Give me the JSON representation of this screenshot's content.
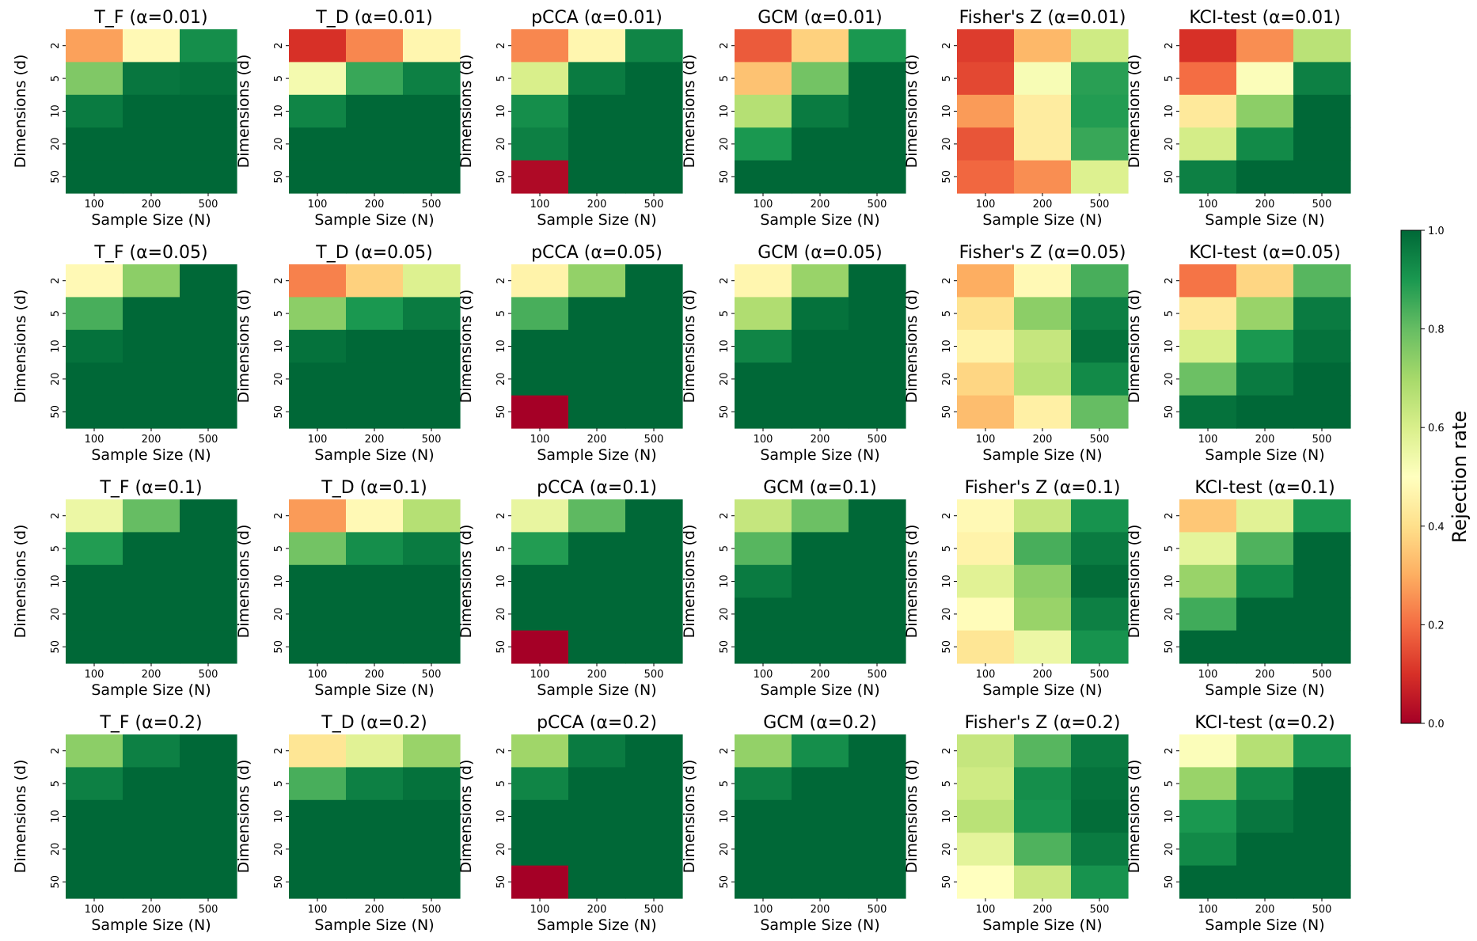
{
  "chart_data": {
    "type": "heatmap",
    "x_categories": [
      "100",
      "200",
      "500"
    ],
    "y_categories": [
      "2",
      "5",
      "10",
      "20",
      "50"
    ],
    "xlabel": "Sample Size (N)",
    "ylabel": "Dimensions (d)",
    "colorbar": {
      "label": "Rejection rate",
      "range": [
        0.0,
        1.0
      ],
      "ticks": [
        "0.0",
        "0.2",
        "0.4",
        "0.6",
        "0.8",
        "1.0"
      ],
      "colormap": "RdYlGn"
    },
    "panels": [
      {
        "title": "T_F (α=0.01)",
        "values": [
          [
            0.28,
            0.48,
            0.92
          ],
          [
            0.76,
            0.97,
            0.98
          ],
          [
            0.96,
            1.0,
            1.0
          ],
          [
            1.0,
            1.0,
            1.0
          ],
          [
            1.0,
            1.0,
            1.0
          ]
        ]
      },
      {
        "title": "T_D (α=0.01)",
        "values": [
          [
            0.1,
            0.24,
            0.47
          ],
          [
            0.53,
            0.86,
            0.95
          ],
          [
            0.94,
            1.0,
            1.0
          ],
          [
            1.0,
            1.0,
            1.0
          ],
          [
            1.0,
            1.0,
            1.0
          ]
        ]
      },
      {
        "title": "pCCA (α=0.01)",
        "values": [
          [
            0.24,
            0.47,
            0.94
          ],
          [
            0.6,
            0.96,
            1.0
          ],
          [
            0.92,
            1.0,
            1.0
          ],
          [
            0.95,
            1.0,
            1.0
          ],
          [
            0.02,
            1.0,
            1.0
          ]
        ]
      },
      {
        "title": "GCM (α=0.01)",
        "values": [
          [
            0.17,
            0.37,
            0.9
          ],
          [
            0.34,
            0.78,
            1.0
          ],
          [
            0.67,
            0.96,
            1.0
          ],
          [
            0.9,
            1.0,
            1.0
          ],
          [
            1.0,
            1.0,
            1.0
          ]
        ]
      },
      {
        "title": "Fisher's Z (α=0.01)",
        "values": [
          [
            0.12,
            0.32,
            0.62
          ],
          [
            0.14,
            0.52,
            0.88
          ],
          [
            0.27,
            0.44,
            0.89
          ],
          [
            0.16,
            0.44,
            0.86
          ],
          [
            0.19,
            0.25,
            0.59
          ]
        ]
      },
      {
        "title": "KCI-test (α=0.01)",
        "values": [
          [
            0.1,
            0.25,
            0.66
          ],
          [
            0.2,
            0.51,
            0.95
          ],
          [
            0.43,
            0.74,
            1.0
          ],
          [
            0.61,
            0.93,
            1.0
          ],
          [
            0.95,
            1.0,
            1.0
          ]
        ]
      },
      {
        "title": "T_F (α=0.05)",
        "values": [
          [
            0.48,
            0.74,
            1.0
          ],
          [
            0.84,
            1.0,
            1.0
          ],
          [
            0.98,
            1.0,
            1.0
          ],
          [
            1.0,
            1.0,
            1.0
          ],
          [
            1.0,
            1.0,
            1.0
          ]
        ]
      },
      {
        "title": "T_D (α=0.05)",
        "values": [
          [
            0.23,
            0.37,
            0.59
          ],
          [
            0.74,
            0.9,
            0.96
          ],
          [
            0.98,
            1.0,
            1.0
          ],
          [
            1.0,
            1.0,
            1.0
          ],
          [
            1.0,
            1.0,
            1.0
          ]
        ]
      },
      {
        "title": "pCCA (α=0.05)",
        "values": [
          [
            0.46,
            0.73,
            1.0
          ],
          [
            0.84,
            1.0,
            1.0
          ],
          [
            1.0,
            1.0,
            1.0
          ],
          [
            1.0,
            1.0,
            1.0
          ],
          [
            0.0,
            1.0,
            1.0
          ]
        ]
      },
      {
        "title": "GCM (α=0.05)",
        "values": [
          [
            0.47,
            0.72,
            1.0
          ],
          [
            0.68,
            0.98,
            1.0
          ],
          [
            0.94,
            1.0,
            1.0
          ],
          [
            1.0,
            1.0,
            1.0
          ],
          [
            1.0,
            1.0,
            1.0
          ]
        ]
      },
      {
        "title": "Fisher's Z (α=0.05)",
        "values": [
          [
            0.3,
            0.48,
            0.84
          ],
          [
            0.41,
            0.74,
            0.95
          ],
          [
            0.46,
            0.64,
            0.98
          ],
          [
            0.38,
            0.66,
            0.93
          ],
          [
            0.33,
            0.45,
            0.8
          ]
        ]
      },
      {
        "title": "KCI-test (α=0.05)",
        "values": [
          [
            0.21,
            0.38,
            0.82
          ],
          [
            0.43,
            0.72,
            0.96
          ],
          [
            0.6,
            0.9,
            0.98
          ],
          [
            0.79,
            0.96,
            1.0
          ],
          [
            0.98,
            1.0,
            1.0
          ]
        ]
      },
      {
        "title": "T_F (α=0.1)",
        "values": [
          [
            0.55,
            0.8,
            1.0
          ],
          [
            0.89,
            1.0,
            1.0
          ],
          [
            1.0,
            1.0,
            1.0
          ],
          [
            1.0,
            1.0,
            1.0
          ],
          [
            1.0,
            1.0,
            1.0
          ]
        ]
      },
      {
        "title": "T_D (α=0.1)",
        "values": [
          [
            0.27,
            0.48,
            0.67
          ],
          [
            0.78,
            0.92,
            0.96
          ],
          [
            1.0,
            1.0,
            1.0
          ],
          [
            1.0,
            1.0,
            1.0
          ],
          [
            1.0,
            1.0,
            1.0
          ]
        ]
      },
      {
        "title": "pCCA (α=0.1)",
        "values": [
          [
            0.56,
            0.81,
            1.0
          ],
          [
            0.89,
            1.0,
            1.0
          ],
          [
            1.0,
            1.0,
            1.0
          ],
          [
            1.0,
            1.0,
            1.0
          ],
          [
            0.0,
            1.0,
            1.0
          ]
        ]
      },
      {
        "title": "GCM (α=0.1)",
        "values": [
          [
            0.64,
            0.79,
            1.0
          ],
          [
            0.82,
            1.0,
            1.0
          ],
          [
            0.96,
            1.0,
            1.0
          ],
          [
            1.0,
            1.0,
            1.0
          ],
          [
            1.0,
            1.0,
            1.0
          ]
        ]
      },
      {
        "title": "Fisher's Z (α=0.1)",
        "values": [
          [
            0.48,
            0.64,
            0.91
          ],
          [
            0.46,
            0.84,
            0.96
          ],
          [
            0.58,
            0.74,
            0.99
          ],
          [
            0.49,
            0.72,
            0.95
          ],
          [
            0.42,
            0.55,
            0.91
          ]
        ]
      },
      {
        "title": "KCI-test (α=0.1)",
        "values": [
          [
            0.35,
            0.58,
            0.9
          ],
          [
            0.57,
            0.83,
            1.0
          ],
          [
            0.72,
            0.93,
            1.0
          ],
          [
            0.85,
            1.0,
            1.0
          ],
          [
            1.0,
            1.0,
            1.0
          ]
        ]
      },
      {
        "title": "T_F (α=0.2)",
        "values": [
          [
            0.74,
            0.95,
            1.0
          ],
          [
            0.95,
            1.0,
            1.0
          ],
          [
            1.0,
            1.0,
            1.0
          ],
          [
            1.0,
            1.0,
            1.0
          ],
          [
            1.0,
            1.0,
            1.0
          ]
        ]
      },
      {
        "title": "T_D (α=0.2)",
        "values": [
          [
            0.42,
            0.58,
            0.72
          ],
          [
            0.84,
            0.95,
            0.98
          ],
          [
            1.0,
            1.0,
            1.0
          ],
          [
            1.0,
            1.0,
            1.0
          ],
          [
            1.0,
            1.0,
            1.0
          ]
        ]
      },
      {
        "title": "pCCA (α=0.2)",
        "values": [
          [
            0.71,
            0.96,
            1.0
          ],
          [
            0.94,
            1.0,
            1.0
          ],
          [
            1.0,
            1.0,
            1.0
          ],
          [
            1.0,
            1.0,
            1.0
          ],
          [
            0.0,
            1.0,
            1.0
          ]
        ]
      },
      {
        "title": "GCM (α=0.2)",
        "values": [
          [
            0.73,
            0.92,
            1.0
          ],
          [
            0.95,
            1.0,
            1.0
          ],
          [
            1.0,
            1.0,
            1.0
          ],
          [
            1.0,
            1.0,
            1.0
          ],
          [
            1.0,
            1.0,
            1.0
          ]
        ]
      },
      {
        "title": "Fisher's Z (α=0.2)",
        "values": [
          [
            0.64,
            0.82,
            0.96
          ],
          [
            0.62,
            0.92,
            0.98
          ],
          [
            0.66,
            0.91,
            0.99
          ],
          [
            0.57,
            0.83,
            0.96
          ],
          [
            0.5,
            0.63,
            0.91
          ]
        ]
      },
      {
        "title": "KCI-test (α=0.2)",
        "values": [
          [
            0.51,
            0.67,
            0.91
          ],
          [
            0.72,
            0.93,
            1.0
          ],
          [
            0.9,
            0.97,
            1.0
          ],
          [
            0.93,
            1.0,
            1.0
          ],
          [
            1.0,
            1.0,
            1.0
          ]
        ]
      }
    ]
  }
}
